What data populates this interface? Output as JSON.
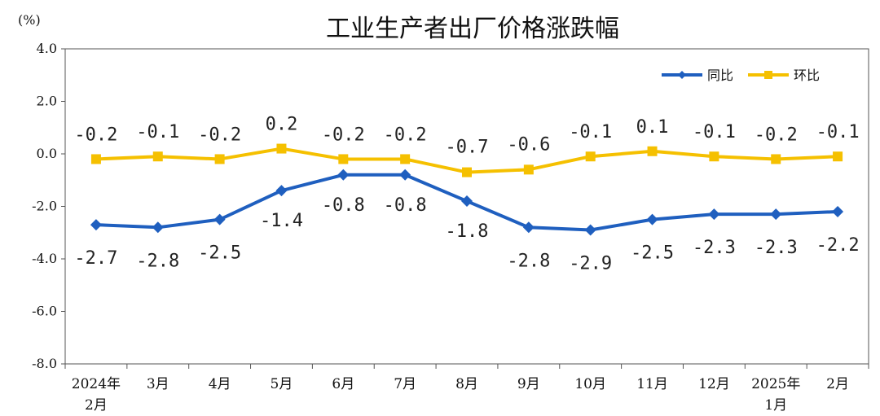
{
  "chart_data": {
    "type": "line",
    "title": "工业生产者出厂价格涨跌幅",
    "unit_label": "(%)",
    "ylim": [
      -8.0,
      4.0
    ],
    "yticks": [
      "4.0",
      "2.0",
      "0.0",
      "-2.0",
      "-4.0",
      "-6.0",
      "-8.0"
    ],
    "ytick_values": [
      4,
      2,
      0,
      -2,
      -4,
      -6,
      -8
    ],
    "categories": [
      [
        "2024年",
        "2月"
      ],
      [
        "3月"
      ],
      [
        "4月"
      ],
      [
        "5月"
      ],
      [
        "6月"
      ],
      [
        "7月"
      ],
      [
        "8月"
      ],
      [
        "9月"
      ],
      [
        "10月"
      ],
      [
        "11月"
      ],
      [
        "12月"
      ],
      [
        "2025年",
        "1月"
      ],
      [
        "2月"
      ]
    ],
    "legend_position": "top-right",
    "series": [
      {
        "name": "同比",
        "color": "#1f5fbf",
        "marker": "diamond",
        "values": [
          -2.7,
          -2.8,
          -2.5,
          -1.4,
          -0.8,
          -0.8,
          -1.8,
          -2.8,
          -2.9,
          -2.5,
          -2.3,
          -2.3,
          -2.2
        ],
        "labels": [
          "-2.7",
          "-2.8",
          "-2.5",
          "-1.4",
          "-0.8",
          "-0.8",
          "-1.8",
          "-2.8",
          "-2.9",
          "-2.5",
          "-2.3",
          "-2.3",
          "-2.2"
        ]
      },
      {
        "name": "环比",
        "color": "#f5c000",
        "marker": "square",
        "values": [
          -0.2,
          -0.1,
          -0.2,
          0.2,
          -0.2,
          -0.2,
          -0.7,
          -0.6,
          -0.1,
          0.1,
          -0.1,
          -0.2,
          -0.1
        ],
        "labels": [
          "-0.2",
          "-0.1",
          "-0.2",
          "0.2",
          "-0.2",
          "-0.2",
          "-0.7",
          "-0.6",
          "-0.1",
          "0.1",
          "-0.1",
          "-0.2",
          "-0.1"
        ]
      }
    ]
  }
}
